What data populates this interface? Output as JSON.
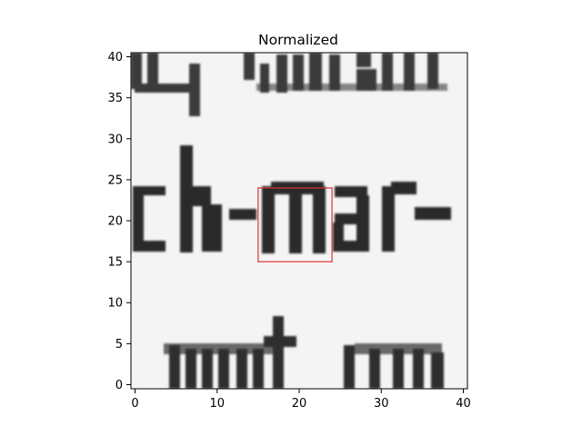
{
  "figure": {
    "title": "Normalized",
    "x_axis": {
      "ticks": [
        0,
        10,
        20,
        30,
        40
      ],
      "range": [
        -0.5,
        40.5
      ]
    },
    "y_axis": {
      "ticks": [
        0,
        5,
        10,
        15,
        20,
        25,
        30,
        35,
        40
      ],
      "range": [
        40.5,
        -0.5
      ],
      "inverted": true
    },
    "image_content": {
      "visible_text_rows": [
        "outcall (top, cropped)",
        "ck-mar-",
        "mm nm (bottom, cropped)"
      ],
      "colormap": "grayscale"
    },
    "highlight_box": {
      "x_range": [
        15,
        24
      ],
      "y_range": [
        15,
        24
      ],
      "color": "#dd3333"
    }
  }
}
